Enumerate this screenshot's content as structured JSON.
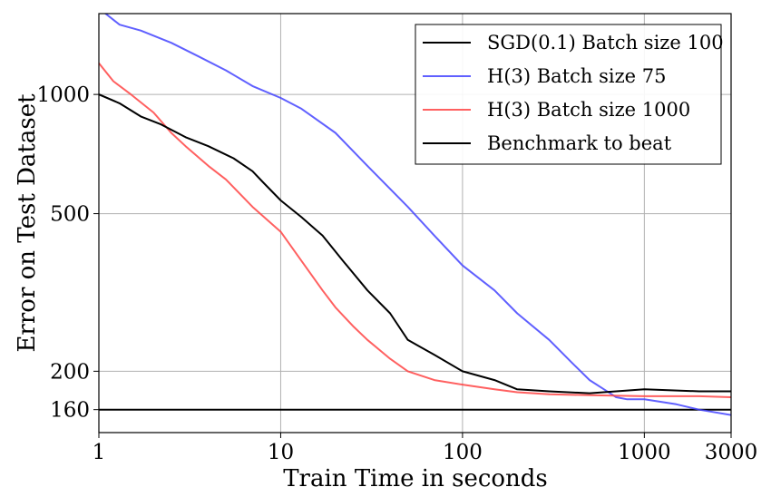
{
  "chart_data": {
    "type": "line",
    "xlabel": "Train Time in seconds",
    "ylabel": "Error on Test Dataset",
    "x_scale": "log",
    "y_scale": "log",
    "xlim": [
      1,
      3000
    ],
    "ylim": [
      140,
      1600
    ],
    "x_ticks": [
      {
        "value": 1,
        "label": "1"
      },
      {
        "value": 10,
        "label": "10"
      },
      {
        "value": 100,
        "label": "100"
      },
      {
        "value": 1000,
        "label": "1000"
      },
      {
        "value": 3000,
        "label": "3000"
      }
    ],
    "y_ticks": [
      {
        "value": 160,
        "label": "160"
      },
      {
        "value": 200,
        "label": "200"
      },
      {
        "value": 500,
        "label": "500"
      },
      {
        "value": 1000,
        "label": "1000"
      }
    ],
    "grid": true,
    "legend_position": "top-right",
    "series": [
      {
        "name": "SGD(0.1) Batch size 100",
        "color": "#000000",
        "opacity": 1,
        "x": [
          1,
          1.3,
          1.7,
          2.2,
          3,
          4,
          5.5,
          7,
          8,
          10,
          13,
          17,
          22,
          30,
          40,
          50,
          70,
          100,
          150,
          200,
          300,
          500,
          700,
          1000,
          2000,
          3000
        ],
        "y": [
          1000,
          950,
          880,
          840,
          780,
          740,
          690,
          640,
          600,
          540,
          490,
          440,
          380,
          320,
          280,
          240,
          220,
          200,
          190,
          180,
          178,
          176,
          178,
          180,
          178,
          178
        ]
      },
      {
        "name": "H(3) Batch size 75",
        "color": "#4444ff",
        "opacity": 0.85,
        "x": [
          1,
          1.3,
          1.7,
          2.5,
          3.5,
          5,
          7,
          10,
          13,
          20,
          30,
          50,
          70,
          100,
          150,
          200,
          300,
          400,
          500,
          600,
          700,
          800,
          1000,
          1500,
          2000,
          3000
        ],
        "y": [
          1650,
          1500,
          1450,
          1350,
          1250,
          1150,
          1050,
          980,
          920,
          800,
          660,
          520,
          440,
          370,
          320,
          280,
          240,
          210,
          190,
          180,
          172,
          170,
          170,
          165,
          160,
          155
        ]
      },
      {
        "name": "H(3) Batch size 1000",
        "color": "#ff4444",
        "opacity": 0.85,
        "x": [
          1,
          1.2,
          1.5,
          2,
          2.5,
          3,
          4,
          5,
          7,
          10,
          13,
          17,
          20,
          25,
          30,
          40,
          50,
          70,
          100,
          150,
          200,
          300,
          500,
          1000,
          2000,
          3000
        ],
        "y": [
          1200,
          1080,
          1000,
          900,
          800,
          740,
          660,
          610,
          520,
          450,
          380,
          320,
          290,
          260,
          240,
          215,
          200,
          190,
          185,
          180,
          177,
          175,
          174,
          173,
          173,
          172
        ]
      },
      {
        "name": "Benchmark to beat",
        "color": "#000000",
        "opacity": 1,
        "x": [
          1,
          3000
        ],
        "y": [
          160,
          160
        ]
      }
    ]
  }
}
